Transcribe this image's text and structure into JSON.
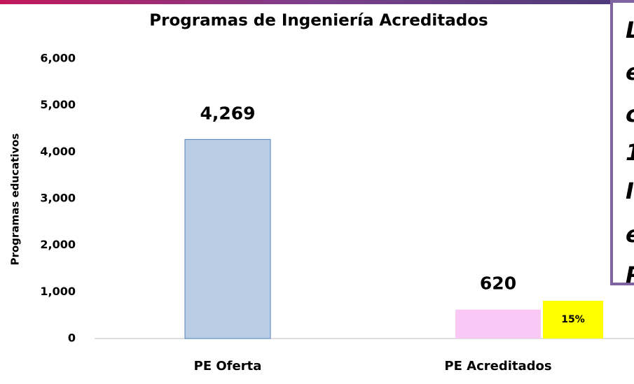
{
  "chart_data": {
    "type": "bar",
    "title": "Programas de Ingeniería Acreditados",
    "y_label": "Programas educativos",
    "categories": [
      "PE Oferta",
      "PE Acreditados"
    ],
    "values": [
      4269,
      620
    ],
    "value_labels": [
      "4,269",
      "620"
    ],
    "colors": [
      "#b9cde5",
      "#f9c8f5"
    ],
    "ylim": [
      0,
      6000
    ],
    "yticks": [
      {
        "value": 0,
        "label": "0"
      },
      {
        "value": 1000,
        "label": "1,000"
      },
      {
        "value": 2000,
        "label": "2,000"
      },
      {
        "value": 3000,
        "label": "3,000"
      },
      {
        "value": 4000,
        "label": "4,000"
      },
      {
        "value": 5000,
        "label": "5,000"
      },
      {
        "value": 6000,
        "label": "6,000"
      }
    ],
    "annotation": "15%",
    "side_text": [
      "L",
      "e",
      "c",
      "1",
      "I",
      "e",
      "P"
    ]
  }
}
